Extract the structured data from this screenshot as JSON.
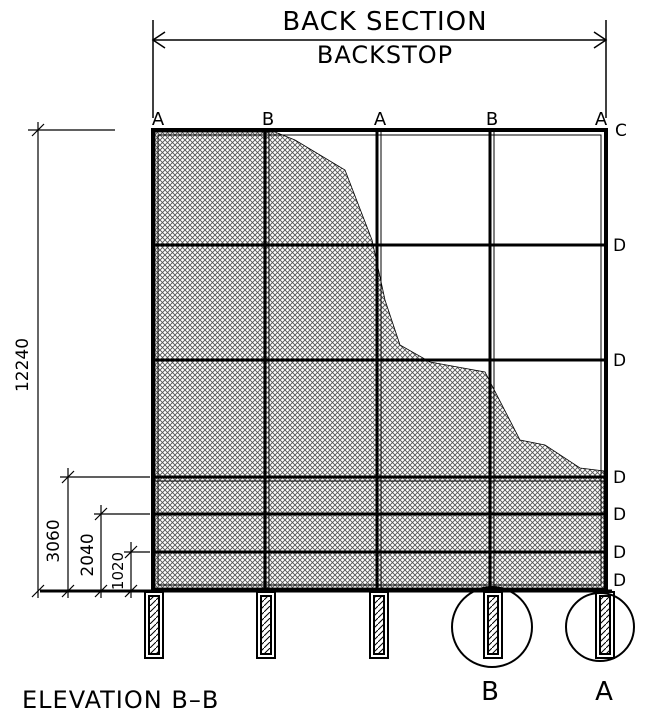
{
  "drawing": {
    "title_line1": "BACK SECTION",
    "title_line2": "BACKSTOP",
    "caption": "ELEVATION B–B",
    "ink_color": "#000000",
    "fabric_color": "#6b6b6b"
  },
  "post_labels": [
    "A",
    "B",
    "A",
    "B",
    "A"
  ],
  "rail_labels": [
    "C",
    "D",
    "D",
    "D",
    "D",
    "D",
    "D"
  ],
  "dimensions": {
    "total_height": "12240",
    "dim_3060": "3060",
    "dim_2040": "2040",
    "dim_1020": "1020"
  },
  "detail_callouts": [
    "B",
    "A"
  ]
}
